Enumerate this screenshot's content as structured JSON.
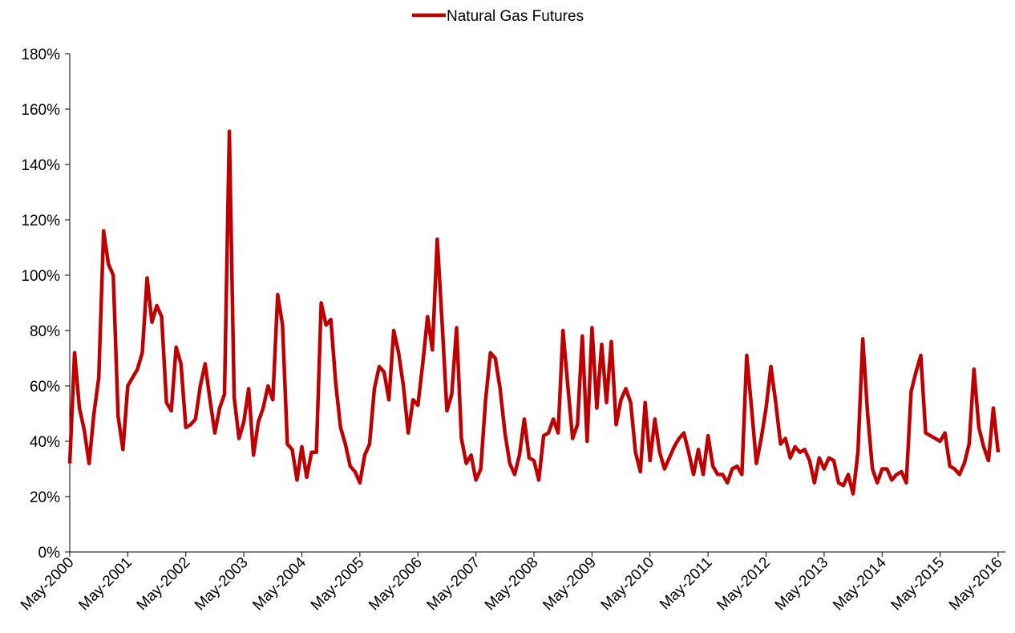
{
  "chart_data": {
    "type": "line",
    "categories": [
      "May-2000",
      null,
      null,
      null,
      null,
      null,
      null,
      null,
      null,
      null,
      null,
      null,
      "May-2001",
      null,
      null,
      null,
      null,
      null,
      null,
      null,
      null,
      null,
      null,
      null,
      "May-2002",
      null,
      null,
      null,
      null,
      null,
      null,
      null,
      null,
      null,
      null,
      null,
      "May-2003",
      null,
      null,
      null,
      null,
      null,
      null,
      null,
      null,
      null,
      null,
      null,
      "May-2004",
      null,
      null,
      null,
      null,
      null,
      null,
      null,
      null,
      null,
      null,
      null,
      "May-2005",
      null,
      null,
      null,
      null,
      null,
      null,
      null,
      null,
      null,
      null,
      null,
      "May-2006",
      null,
      null,
      null,
      null,
      null,
      null,
      null,
      null,
      null,
      null,
      null,
      "May-2007",
      null,
      null,
      null,
      null,
      null,
      null,
      null,
      null,
      null,
      null,
      null,
      "May-2008",
      null,
      null,
      null,
      null,
      null,
      null,
      null,
      null,
      null,
      null,
      null,
      "May-2009",
      null,
      null,
      null,
      null,
      null,
      null,
      null,
      null,
      null,
      null,
      null,
      "May-2010",
      null,
      null,
      null,
      null,
      null,
      null,
      null,
      null,
      null,
      null,
      null,
      "May-2011",
      null,
      null,
      null,
      null,
      null,
      null,
      null,
      null,
      null,
      null,
      null,
      "May-2012",
      null,
      null,
      null,
      null,
      null,
      null,
      null,
      null,
      null,
      null,
      null,
      "May-2013",
      null,
      null,
      null,
      null,
      null,
      null,
      null,
      null,
      null,
      null,
      null,
      "May-2014",
      null,
      null,
      null,
      null,
      null,
      null,
      null,
      null,
      null,
      null,
      null,
      "May-2015",
      null,
      null,
      null,
      null,
      null,
      null,
      null,
      null,
      null,
      null,
      null,
      "May-2016"
    ],
    "series": [
      {
        "name": "Natural Gas Futures",
        "color": "#c00000",
        "values": [
          32,
          72,
          52,
          44,
          32,
          50,
          63,
          116,
          104,
          100,
          49,
          37,
          60,
          63,
          66,
          72,
          99,
          83,
          89,
          85,
          54,
          51,
          74,
          68,
          45,
          46,
          48,
          60,
          68,
          55,
          43,
          52,
          57,
          152,
          56,
          41,
          47,
          59,
          35,
          47,
          52,
          60,
          55,
          93,
          82,
          39,
          37,
          26,
          38,
          27,
          36,
          36,
          90,
          82,
          84,
          61,
          45,
          39,
          31,
          29,
          25,
          35,
          39,
          59,
          67,
          65,
          55,
          80,
          72,
          60,
          43,
          55,
          53,
          68,
          85,
          73,
          113,
          83,
          51,
          57,
          81,
          41,
          32,
          35,
          26,
          30,
          55,
          72,
          70,
          59,
          43,
          32,
          28,
          35,
          48,
          34,
          33,
          26,
          42,
          43,
          48,
          43,
          80,
          60,
          41,
          46,
          78,
          40,
          81,
          52,
          75,
          54,
          76,
          46,
          55,
          59,
          54,
          36,
          29,
          54,
          33,
          48,
          36,
          30,
          34,
          38,
          41,
          43,
          36,
          28,
          37,
          28,
          42,
          31,
          28,
          28,
          25,
          30,
          31,
          28,
          71,
          52,
          32,
          41,
          52,
          67,
          54,
          39,
          41,
          34,
          38,
          36,
          37,
          33,
          25,
          34,
          30,
          34,
          33,
          25,
          24,
          28,
          21,
          36,
          77,
          50,
          30,
          25,
          30,
          30,
          26,
          28,
          29,
          25,
          58,
          65,
          71,
          43,
          42,
          41,
          40,
          43,
          31,
          30,
          28,
          32,
          39,
          66,
          45,
          38,
          33,
          52,
          36
        ]
      }
    ],
    "ylim": [
      0,
      180
    ],
    "yticks": [
      {
        "value": 0,
        "label": "0%"
      },
      {
        "value": 20,
        "label": "20%"
      },
      {
        "value": 40,
        "label": "40%"
      },
      {
        "value": 60,
        "label": "60%"
      },
      {
        "value": 80,
        "label": "80%"
      },
      {
        "value": 100,
        "label": "100%"
      },
      {
        "value": 120,
        "label": "120%"
      },
      {
        "value": 140,
        "label": "140%"
      },
      {
        "value": 160,
        "label": "160%"
      },
      {
        "value": 180,
        "label": "180%"
      }
    ],
    "grid": false,
    "legend": "top"
  }
}
